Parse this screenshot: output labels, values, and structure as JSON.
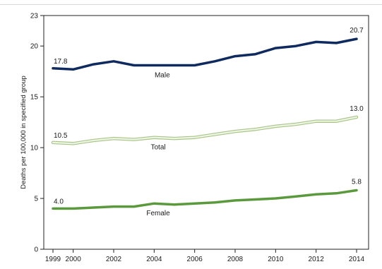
{
  "chart_data": {
    "type": "line",
    "title": "",
    "xlabel": "",
    "ylabel": "Deaths per 100,000 in specified group",
    "xlim": [
      1999,
      2014
    ],
    "ylim": [
      0,
      23
    ],
    "x_ticks": [
      1999,
      2000,
      2002,
      2004,
      2006,
      2008,
      2010,
      2012,
      2014
    ],
    "y_ticks": [
      0,
      5,
      10,
      15,
      20,
      23
    ],
    "grid": false,
    "legend": "none",
    "x": [
      1999,
      2000,
      2001,
      2002,
      2003,
      2004,
      2005,
      2006,
      2007,
      2008,
      2009,
      2010,
      2011,
      2012,
      2013,
      2014
    ],
    "series": [
      {
        "name": "Male",
        "color": "#0f2a5e",
        "values": [
          17.8,
          17.7,
          18.2,
          18.5,
          18.1,
          18.1,
          18.1,
          18.1,
          18.5,
          19.0,
          19.2,
          19.8,
          20.0,
          20.4,
          20.3,
          20.7
        ],
        "start_label": "17.8",
        "end_label": "20.7"
      },
      {
        "name": "Total",
        "color": "#c9dcae",
        "values": [
          10.5,
          10.4,
          10.7,
          10.9,
          10.8,
          11.0,
          10.9,
          11.0,
          11.3,
          11.6,
          11.8,
          12.1,
          12.3,
          12.6,
          12.6,
          13.0
        ],
        "start_label": "10.5",
        "end_label": "13.0"
      },
      {
        "name": "Female",
        "color": "#5a9a3c",
        "values": [
          4.0,
          4.0,
          4.1,
          4.2,
          4.2,
          4.5,
          4.4,
          4.5,
          4.6,
          4.8,
          4.9,
          5.0,
          5.2,
          5.4,
          5.5,
          5.8
        ],
        "start_label": "4.0",
        "end_label": "5.8"
      }
    ]
  }
}
